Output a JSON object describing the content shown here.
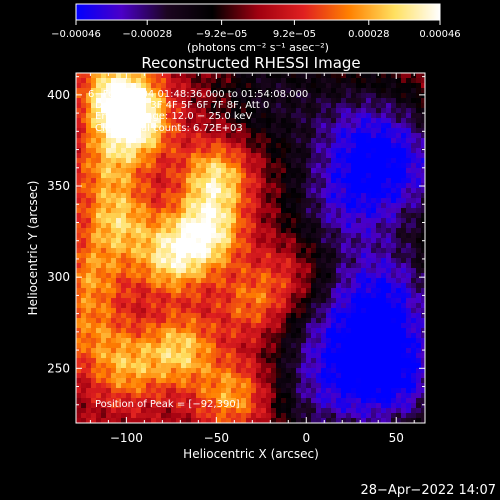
{
  "chart_data": {
    "type": "heatmap",
    "title": "Reconstructed RHESSI Image",
    "xlabel": "Heliocentric X (arcsec)",
    "ylabel": "Heliocentric Y (arcsec)",
    "xlim": [
      -128,
      66
    ],
    "ylim": [
      220,
      412
    ],
    "x_ticks": [
      -100,
      -50,
      0,
      50
    ],
    "x_tick_labels": [
      "−100",
      "−50",
      "0",
      "50"
    ],
    "y_ticks": [
      250,
      300,
      350,
      400
    ],
    "y_tick_labels": [
      "250",
      "300",
      "350",
      "400"
    ],
    "colorbar": {
      "range": [
        -0.00046,
        0.00046
      ],
      "ticks": [
        -0.00046,
        -0.00028,
        -9.2e-05,
        9.2e-05,
        0.00028,
        0.00046
      ],
      "tick_labels": [
        "−0.00046",
        "−0.00028",
        "−9.2e−05",
        "9.2e−05",
        "0.00028",
        "0.00046"
      ],
      "units_label": "(photons cm⁻² s⁻¹ asec⁻²)",
      "colors": [
        "#0000ff",
        "#4b00c8",
        "#1c0520",
        "#000000",
        "#a00010",
        "#e02020",
        "#ff8000",
        "#ffe060",
        "#ffffff"
      ]
    },
    "annotations": {
      "time_range": "6−Feb−2004 01:48:36.000 to 01:54:08.000",
      "detectors": "Detectors: 3F 4F 5F 6F 7F 8F, Att 0",
      "energy": "Energy Range: 12.0 − 25.0 keV",
      "method": "Clean   Total counts: 6.72E+03",
      "peak": "Position of Peak = [−92,390]"
    },
    "hot_regions": [
      {
        "x": -95,
        "y": 385,
        "value": 0.00042
      },
      {
        "x": -105,
        "y": 400,
        "value": 0.0004
      },
      {
        "x": -50,
        "y": 355,
        "value": 0.00036
      },
      {
        "x": -55,
        "y": 325,
        "value": 0.0004
      },
      {
        "x": -75,
        "y": 310,
        "value": 0.00034
      },
      {
        "x": -105,
        "y": 330,
        "value": 0.0003
      },
      {
        "x": -120,
        "y": 300,
        "value": 0.00022
      },
      {
        "x": -30,
        "y": 285,
        "value": 0.0002
      },
      {
        "x": -70,
        "y": 260,
        "value": 0.00032
      },
      {
        "x": -100,
        "y": 250,
        "value": 0.00025
      },
      {
        "x": -40,
        "y": 235,
        "value": 0.00028
      },
      {
        "x": -110,
        "y": 360,
        "value": 0.00022
      },
      {
        "x": -10,
        "y": 300,
        "value": 0.00014
      },
      {
        "x": -120,
        "y": 270,
        "value": 0.00018
      }
    ],
    "cold_regions": [
      {
        "x": 20,
        "y": 340,
        "value": -0.00028
      },
      {
        "x": 45,
        "y": 290,
        "value": -0.00034
      },
      {
        "x": 30,
        "y": 380,
        "value": -0.00026
      },
      {
        "x": 50,
        "y": 245,
        "value": -0.0004
      },
      {
        "x": 10,
        "y": 235,
        "value": -0.00024
      },
      {
        "x": 55,
        "y": 360,
        "value": -0.0003
      },
      {
        "x": -20,
        "y": 400,
        "value": -0.00018
      },
      {
        "x": 15,
        "y": 270,
        "value": -0.00022
      }
    ]
  },
  "footer": {
    "timestamp": "28−Apr−2022 14:07"
  }
}
